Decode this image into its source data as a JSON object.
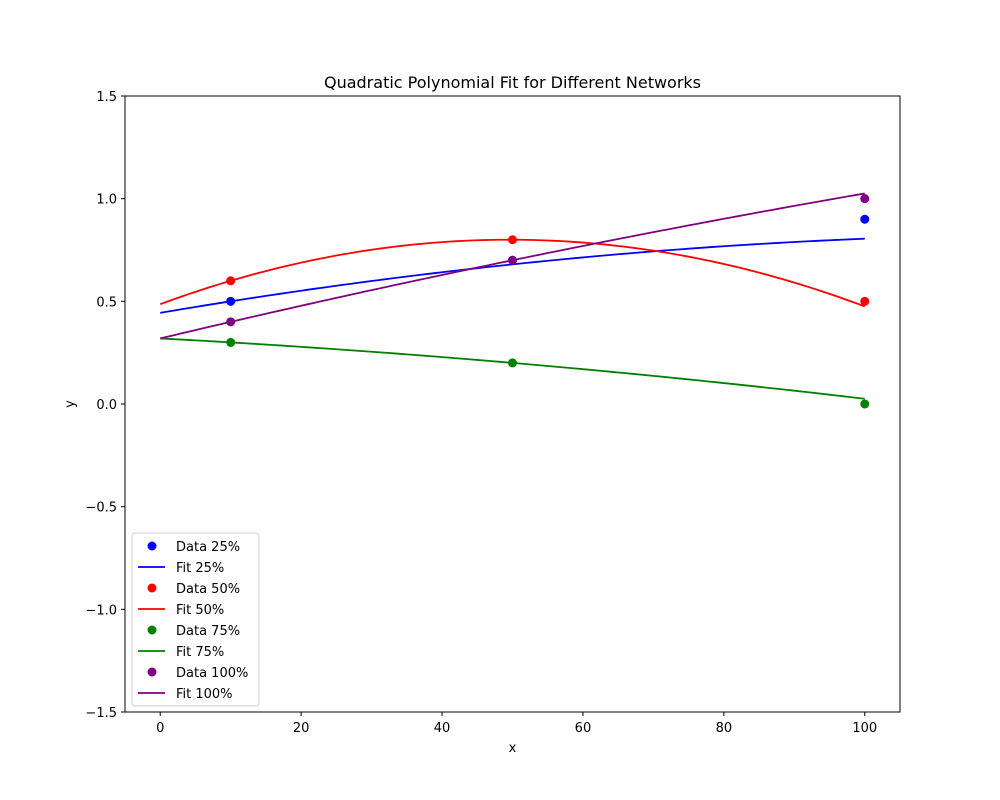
{
  "chart_data": {
    "type": "line",
    "title": "Quadratic Polynomial Fit for Different Networks",
    "xlabel": "x",
    "ylabel": "y",
    "xlim": [
      -5,
      105
    ],
    "ylim": [
      -1.5,
      1.5
    ],
    "xticks": [
      0,
      20,
      40,
      60,
      80,
      100
    ],
    "yticks": [
      -1.5,
      -1.0,
      -0.5,
      0.0,
      0.5,
      1.0,
      1.5
    ],
    "xtick_labels": [
      "0",
      "20",
      "40",
      "60",
      "80",
      "100"
    ],
    "ytick_labels": [
      "−1.5",
      "−1.0",
      "−0.5",
      "0.0",
      "0.5",
      "1.0",
      "1.5"
    ],
    "grid": false,
    "legend_position": "lower-left",
    "data_x": [
      10,
      50,
      100
    ],
    "series": [
      {
        "name": "Data 25%",
        "kind": "scatter",
        "color": "#0000ff",
        "x": [
          10,
          50,
          100
        ],
        "y": [
          0.5,
          0.7,
          0.9
        ]
      },
      {
        "name": "Fit 25%",
        "kind": "line",
        "color": "#0000ff",
        "fit_x_range": [
          0,
          100
        ],
        "coefficients": [
          -2.22e-05,
          0.00583,
          0.444
        ]
      },
      {
        "name": "Data 50%",
        "kind": "scatter",
        "color": "#ff0000",
        "x": [
          10,
          50,
          100
        ],
        "y": [
          0.6,
          0.8,
          0.5
        ]
      },
      {
        "name": "Fit 50%",
        "kind": "line",
        "color": "#ff0000",
        "fit_x_range": [
          0,
          100
        ],
        "coefficients": [
          -0.0001278,
          0.01267,
          0.4861
        ]
      },
      {
        "name": "Data 75%",
        "kind": "scatter",
        "color": "#008000",
        "x": [
          10,
          50,
          100
        ],
        "y": [
          0.3,
          0.2,
          0.0
        ]
      },
      {
        "name": "Fit 75%",
        "kind": "line",
        "color": "#008000",
        "fit_x_range": [
          0,
          100
        ],
        "coefficients": [
          -1.11e-05,
          -0.00183,
          0.3194
        ]
      },
      {
        "name": "Data 100%",
        "kind": "scatter",
        "color": "#800080",
        "x": [
          10,
          50,
          100
        ],
        "y": [
          0.4,
          0.7,
          1.0
        ]
      },
      {
        "name": "Fit 100%",
        "kind": "line",
        "color": "#800080",
        "fit_x_range": [
          0,
          100
        ],
        "coefficients": [
          -1.11e-05,
          0.00817,
          0.3194
        ]
      }
    ]
  }
}
